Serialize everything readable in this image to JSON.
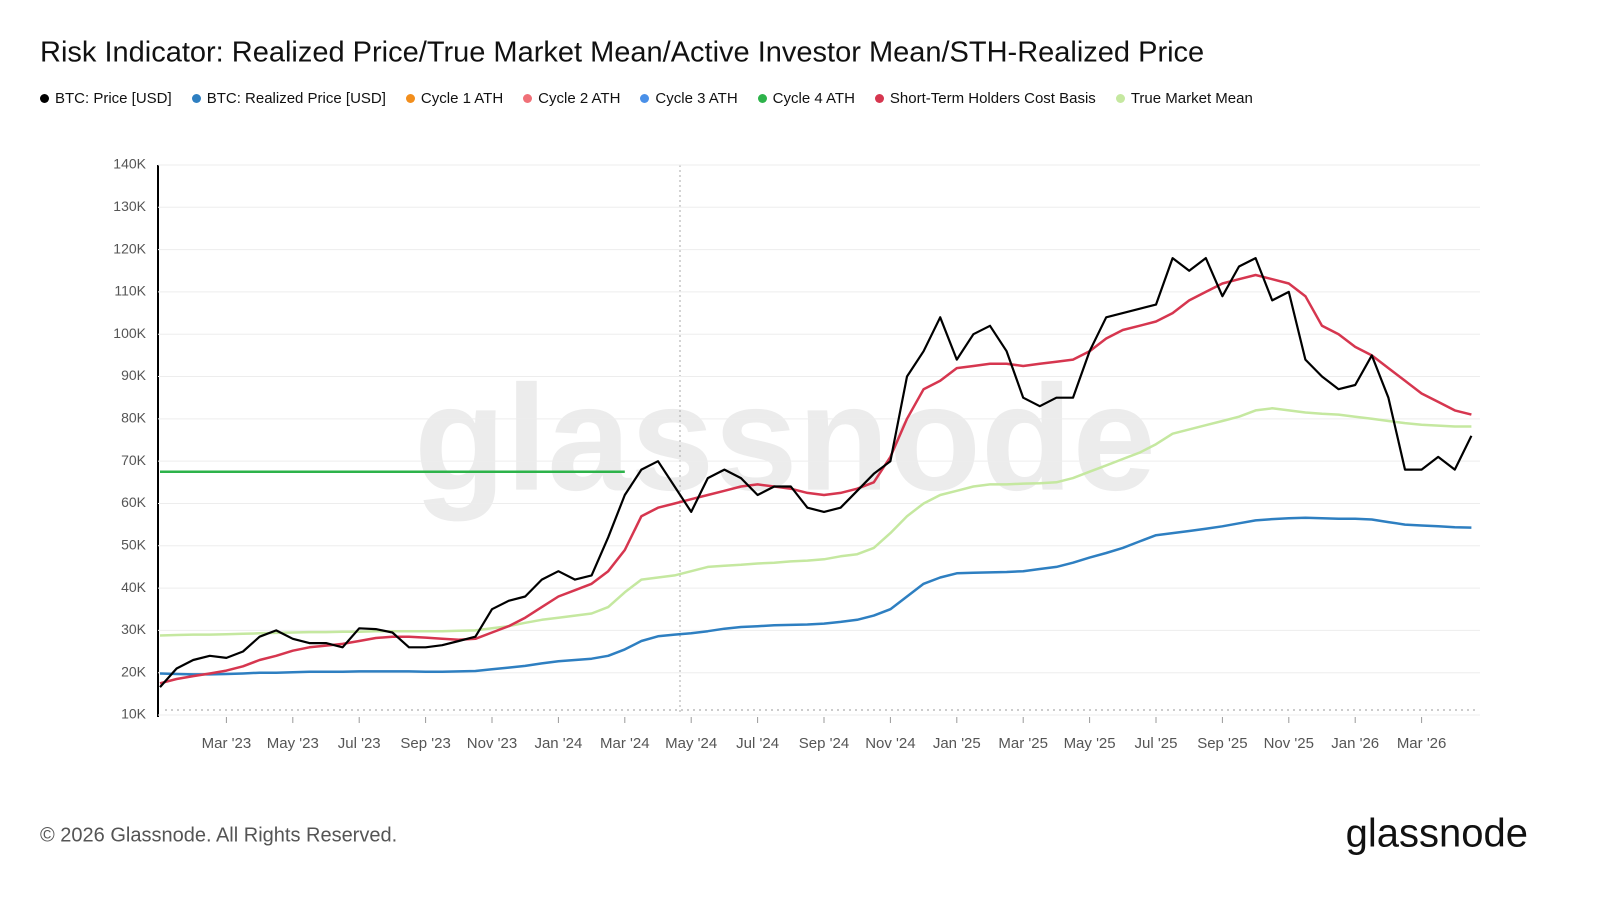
{
  "chart_data": {
    "type": "line",
    "title": "Risk Indicator: Realized Price/True Market Mean/Active Investor Mean/STH-Realized Price",
    "watermark": "glassnode",
    "footer": "© 2026 Glassnode. All Rights Reserved.",
    "logo": "glassnode",
    "grid": true,
    "categories": [
      null,
      null,
      null,
      null,
      "Mar '23",
      null,
      null,
      null,
      "May '23",
      null,
      null,
      null,
      "Jul '23",
      null,
      null,
      null,
      "Sep '23",
      null,
      null,
      null,
      "Nov '23",
      null,
      null,
      null,
      "Jan '24",
      null,
      null,
      null,
      "Mar '24",
      null,
      null,
      null,
      "May '24",
      null,
      null,
      null,
      "Jul '24",
      null,
      null,
      null,
      "Sep '24",
      null,
      null,
      null,
      "Nov '24",
      null,
      null,
      null,
      "Jan '25",
      null,
      null,
      null,
      "Mar '25",
      null,
      null,
      null,
      "May '25",
      null,
      null,
      null,
      "Jul '25",
      null,
      null,
      null,
      "Sep '25",
      null,
      null,
      null,
      "Nov '25",
      null,
      null,
      null,
      "Jan '26",
      null,
      null,
      null,
      "Mar '26",
      null,
      null,
      null
    ],
    "ylim": [
      10000,
      140000
    ],
    "yticks": [
      {
        "value": 10000,
        "label": "10K"
      },
      {
        "value": 20000,
        "label": "20K"
      },
      {
        "value": 30000,
        "label": "30K"
      },
      {
        "value": 40000,
        "label": "40K"
      },
      {
        "value": 50000,
        "label": "50K"
      },
      {
        "value": 60000,
        "label": "60K"
      },
      {
        "value": 70000,
        "label": "70K"
      },
      {
        "value": 80000,
        "label": "80K"
      },
      {
        "value": 90000,
        "label": "90K"
      },
      {
        "value": 100000,
        "label": "100K"
      },
      {
        "value": 110000,
        "label": "110K"
      },
      {
        "value": 120000,
        "label": "120K"
      },
      {
        "value": 130000,
        "label": "130K"
      },
      {
        "value": 140000,
        "label": "140K"
      }
    ],
    "series": [
      {
        "name": "BTC: Price [USD]",
        "color": "#000000",
        "values": [
          16600,
          21000,
          23000,
          24000,
          23500,
          25000,
          28500,
          30000,
          28000,
          27000,
          27000,
          26000,
          30500,
          30300,
          29500,
          26000,
          26000,
          26500,
          27500,
          28500,
          35000,
          37000,
          38000,
          42000,
          44000,
          42000,
          43000,
          52000,
          62000,
          68000,
          70000,
          64000,
          58000,
          66000,
          68000,
          66000,
          62000,
          64000,
          64000,
          59000,
          58000,
          59000,
          63000,
          67000,
          70000,
          90000,
          96000,
          104000,
          94000,
          100000,
          102000,
          96000,
          85000,
          83000,
          85000,
          85000,
          96000,
          104000,
          105000,
          106000,
          107000,
          118000,
          115000,
          118000,
          109000,
          116000,
          118000,
          108000,
          110000,
          94000,
          90000,
          87000,
          88000,
          95000,
          85000,
          68000,
          68000,
          71000,
          68000,
          76000
        ]
      },
      {
        "name": "BTC: Realized Price [USD]",
        "color": "#2e7fc1",
        "values": [
          19800,
          19700,
          19600,
          19600,
          19700,
          19800,
          20000,
          20000,
          20100,
          20200,
          20200,
          20200,
          20300,
          20300,
          20300,
          20300,
          20200,
          20200,
          20300,
          20400,
          20800,
          21200,
          21600,
          22200,
          22700,
          23000,
          23300,
          24000,
          25500,
          27500,
          28600,
          29000,
          29300,
          29800,
          30400,
          30800,
          31000,
          31200,
          31300,
          31400,
          31600,
          32000,
          32500,
          33500,
          35000,
          38000,
          41000,
          42500,
          43500,
          43600,
          43700,
          43800,
          44000,
          44500,
          45000,
          46000,
          47200,
          48300,
          49500,
          51000,
          52500,
          53000,
          53500,
          54000,
          54600,
          55300,
          56000,
          56300,
          56500,
          56600,
          56500,
          56400,
          56400,
          56200,
          55600,
          55000,
          54800,
          54600,
          54400,
          54300
        ]
      },
      {
        "name": "Cycle 1 ATH",
        "color": "#f28e1c",
        "values": [
          null,
          null,
          null,
          null,
          null,
          null,
          null,
          null,
          null,
          null,
          null,
          null,
          null,
          null,
          null,
          null,
          null,
          null,
          null,
          null,
          null,
          null,
          null,
          null,
          null,
          null,
          null,
          null,
          null,
          null,
          null,
          null,
          null,
          null,
          null,
          null,
          null,
          null,
          null,
          null,
          null,
          null,
          null,
          null,
          null,
          null,
          null,
          null,
          null,
          null,
          null,
          null,
          null,
          null,
          null,
          null,
          null,
          null,
          null,
          null,
          null,
          null,
          null,
          null,
          null,
          null,
          null,
          null,
          null,
          null,
          null,
          null,
          null,
          null,
          null,
          null,
          null,
          null,
          null,
          null
        ]
      },
      {
        "name": "Cycle 2 ATH",
        "color": "#f07078",
        "values": [
          null,
          null,
          null,
          null,
          null,
          null,
          null,
          null,
          null,
          null,
          null,
          null,
          null,
          null,
          null,
          null,
          null,
          null,
          null,
          null,
          null,
          null,
          null,
          null,
          null,
          null,
          null,
          null,
          null,
          null,
          null,
          null,
          null,
          null,
          null,
          null,
          null,
          null,
          null,
          null,
          null,
          null,
          null,
          null,
          null,
          null,
          null,
          null,
          null,
          null,
          null,
          null,
          null,
          null,
          null,
          null,
          null,
          null,
          null,
          null,
          null,
          null,
          null,
          null,
          null,
          null,
          null,
          null,
          null,
          null,
          null,
          null,
          null,
          null,
          null,
          null,
          null,
          null,
          null,
          null
        ]
      },
      {
        "name": "Cycle 3 ATH",
        "color": "#4a90e8",
        "values": [
          null,
          null,
          null,
          null,
          null,
          null,
          null,
          null,
          null,
          null,
          null,
          null,
          null,
          null,
          null,
          null,
          null,
          null,
          null,
          null,
          null,
          null,
          null,
          null,
          null,
          null,
          null,
          null,
          null,
          null,
          null,
          null,
          null,
          null,
          null,
          null,
          null,
          null,
          null,
          null,
          null,
          null,
          null,
          null,
          null,
          null,
          null,
          null,
          null,
          null,
          null,
          null,
          null,
          null,
          null,
          null,
          null,
          null,
          null,
          null,
          null,
          null,
          null,
          null,
          null,
          null,
          null,
          null,
          null,
          null,
          null,
          null,
          null,
          null,
          null,
          null,
          null,
          null,
          null,
          null
        ]
      },
      {
        "name": "Cycle 4 ATH",
        "color": "#2db34a",
        "values": [
          67500,
          67500,
          67500,
          67500,
          67500,
          67500,
          67500,
          67500,
          67500,
          67500,
          67500,
          67500,
          67500,
          67500,
          67500,
          67500,
          67500,
          67500,
          67500,
          67500,
          67500,
          67500,
          67500,
          67500,
          67500,
          67500,
          67500,
          67500,
          67500,
          null,
          null,
          null,
          null,
          null,
          null,
          null,
          null,
          null,
          null,
          null,
          null,
          null,
          null,
          null,
          null,
          null,
          null,
          null,
          null,
          null,
          null,
          null,
          null,
          null,
          null,
          null,
          null,
          null,
          null,
          null,
          null,
          null,
          null,
          null,
          null,
          null,
          null,
          null,
          null,
          null,
          null,
          null,
          null,
          null,
          null,
          null,
          null,
          null,
          null,
          null
        ]
      },
      {
        "name": "Short-Term Holders Cost Basis",
        "color": "#d6364f",
        "values": [
          17500,
          18500,
          19200,
          19800,
          20500,
          21500,
          23000,
          24000,
          25200,
          26000,
          26400,
          26800,
          27500,
          28200,
          28500,
          28500,
          28300,
          28000,
          27800,
          28000,
          29500,
          31000,
          33000,
          35500,
          38000,
          39500,
          41000,
          44000,
          49000,
          57000,
          59000,
          60000,
          61000,
          62000,
          63000,
          64000,
          64500,
          64000,
          63500,
          62500,
          62000,
          62500,
          63500,
          65000,
          71000,
          80000,
          87000,
          89000,
          92000,
          92500,
          93000,
          93000,
          92500,
          93000,
          93500,
          94000,
          96000,
          99000,
          101000,
          102000,
          103000,
          105000,
          108000,
          110000,
          112000,
          113000,
          114000,
          113000,
          112000,
          109000,
          102000,
          100000,
          97000,
          95000,
          92000,
          89000,
          86000,
          84000,
          82000,
          81000
        ]
      },
      {
        "name": "True Market Mean",
        "color": "#c5e8a0",
        "values": [
          28800,
          28900,
          29000,
          29000,
          29100,
          29200,
          29300,
          29400,
          29500,
          29600,
          29600,
          29700,
          29700,
          29800,
          29800,
          29800,
          29800,
          29800,
          29900,
          30000,
          30500,
          31000,
          31800,
          32500,
          33000,
          33500,
          34000,
          35500,
          39000,
          42000,
          42500,
          43000,
          44000,
          45000,
          45300,
          45500,
          45800,
          46000,
          46300,
          46500,
          46800,
          47500,
          48000,
          49500,
          53000,
          57000,
          60000,
          62000,
          63000,
          64000,
          64500,
          64500,
          64700,
          64800,
          65000,
          66000,
          67500,
          69000,
          70500,
          72000,
          74000,
          76500,
          77500,
          78500,
          79500,
          80500,
          82000,
          82500,
          82000,
          81500,
          81200,
          81000,
          80500,
          80000,
          79500,
          79000,
          78600,
          78400,
          78200,
          78200
        ]
      }
    ]
  }
}
